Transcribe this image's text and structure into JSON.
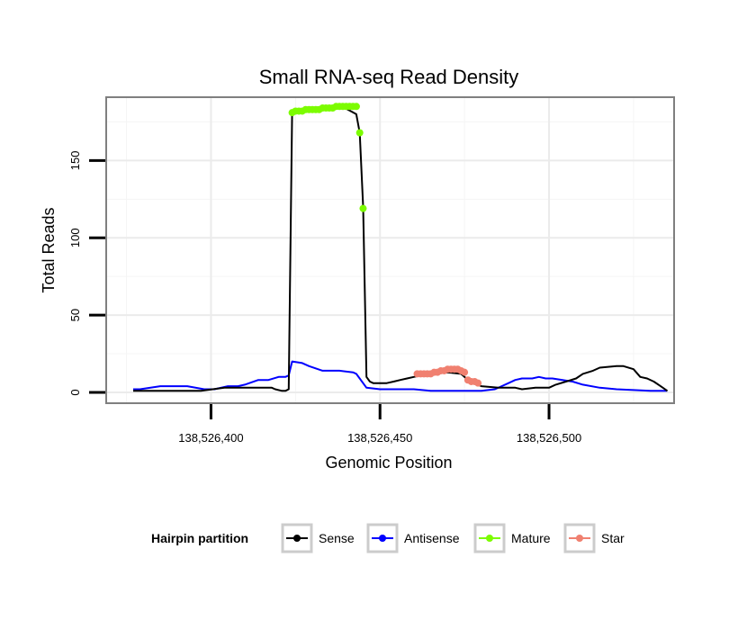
{
  "chart_data": {
    "type": "line",
    "title": "Small RNA-seq Read Density",
    "xlabel": "Genomic Position",
    "ylabel": "Total Reads",
    "xlim": [
      138526369,
      138526537
    ],
    "ylim": [
      -7,
      191
    ],
    "x_ticks": [
      138526400,
      138526450,
      138526500
    ],
    "x_tick_labels": [
      "138,526,400",
      "138,526,450",
      "138,526,500"
    ],
    "y_ticks": [
      0,
      50,
      100,
      150
    ],
    "y_tick_labels": [
      "0",
      "50",
      "100",
      "150"
    ],
    "grid": true,
    "legend": {
      "title": "Hairpin partition",
      "position": "bottom",
      "entries": [
        "Sense",
        "Antisense",
        "Mature",
        "Star"
      ]
    },
    "colors": {
      "Sense": "#000000",
      "Antisense": "#0000ff",
      "Mature": "#7cfc00",
      "Star": "#f08070"
    },
    "series": [
      {
        "name": "Sense",
        "style": "line",
        "x": [
          138526377,
          138526390,
          138526397,
          138526404,
          138526412,
          138526418,
          138526419,
          138526421,
          138526422,
          138526423,
          138526424,
          138526430,
          138526438,
          138526443,
          138526444,
          138526445,
          138526446,
          138526447,
          138526448,
          138526450,
          138526452,
          138526454,
          138526456,
          138526458,
          138526460,
          138526462,
          138526466,
          138526470,
          138526474,
          138526476,
          138526478,
          138526480,
          138526485,
          138526490,
          138526492,
          138526496,
          138526500,
          138526502,
          138526505,
          138526508,
          138526510,
          138526513,
          138526515,
          138526520,
          138526522,
          138526525,
          138526527,
          138526529,
          138526531,
          138526533,
          138526535
        ],
        "y": [
          1,
          1,
          1,
          3,
          3,
          3,
          2,
          1,
          1,
          2,
          182,
          184,
          186,
          180,
          168,
          120,
          10,
          7,
          6,
          6,
          6,
          7,
          8,
          9,
          10,
          11,
          12,
          13,
          12,
          8,
          6,
          4,
          3,
          3,
          2,
          3,
          3,
          5,
          7,
          9,
          12,
          14,
          16,
          17,
          17,
          15,
          10,
          9,
          7,
          4,
          1
        ]
      },
      {
        "name": "Antisense",
        "style": "line",
        "x": [
          138526377,
          138526379,
          138526385,
          138526393,
          138526398,
          138526401,
          138526405,
          138526408,
          138526410,
          138526414,
          138526417,
          138526420,
          138526422,
          138526423,
          138526424,
          138526427,
          138526429,
          138526433,
          138526438,
          138526442,
          138526443,
          138526446,
          138526450,
          138526460,
          138526465,
          138526470,
          138526480,
          138526484,
          138526486,
          138526488,
          138526490,
          138526492,
          138526495,
          138526497,
          138526499,
          138526501,
          138526504,
          138526507,
          138526510,
          138526515,
          138526520,
          138526530,
          138526535
        ],
        "y": [
          2,
          2,
          4,
          4,
          2,
          2,
          4,
          4,
          5,
          8,
          8,
          10,
          10,
          11,
          20,
          19,
          17,
          14,
          14,
          13,
          12,
          3,
          2,
          2,
          1,
          1,
          1,
          2,
          4,
          6,
          8,
          9,
          9,
          10,
          9,
          9,
          8,
          7,
          5,
          3,
          2,
          1,
          1
        ]
      },
      {
        "name": "Mature",
        "style": "points",
        "x": [
          138526424,
          138526425,
          138526426,
          138526427,
          138526428,
          138526429,
          138526430,
          138526431,
          138526432,
          138526433,
          138526434,
          138526435,
          138526436,
          138526437,
          138526438,
          138526439,
          138526440,
          138526441,
          138526442,
          138526443,
          138526444,
          138526445
        ],
        "y": [
          181,
          182,
          182,
          182,
          183,
          183,
          183,
          183,
          183,
          184,
          184,
          184,
          184,
          185,
          185,
          185,
          185,
          185,
          185,
          185,
          168,
          119
        ]
      },
      {
        "name": "Star",
        "style": "points",
        "x": [
          138526461,
          138526462,
          138526463,
          138526464,
          138526465,
          138526466,
          138526467,
          138526468,
          138526469,
          138526470,
          138526471,
          138526472,
          138526473,
          138526474,
          138526475,
          138526476,
          138526477,
          138526478,
          138526479
        ],
        "y": [
          12,
          12,
          12,
          12,
          12,
          13,
          13,
          14,
          14,
          15,
          15,
          15,
          15,
          14,
          13,
          8,
          7,
          7,
          6
        ]
      }
    ]
  }
}
